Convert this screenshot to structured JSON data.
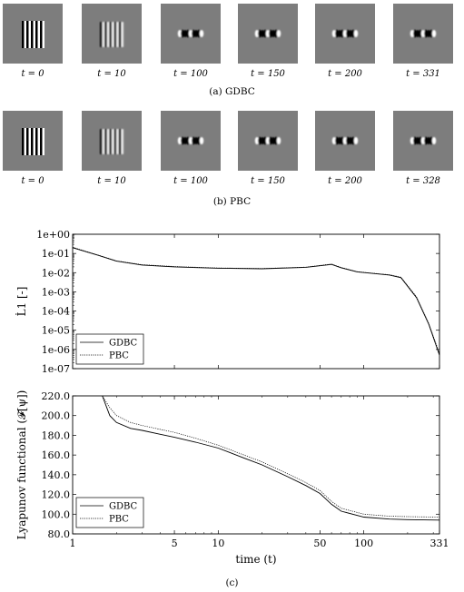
{
  "figure_rows": [
    {
      "caption": "(a) GDBC",
      "panels": [
        {
          "label": "t = 0",
          "pattern": "full-stripes"
        },
        {
          "label": "t = 10",
          "pattern": "blurred-stripes"
        },
        {
          "label": "t = 100",
          "pattern": "spots"
        },
        {
          "label": "t = 150",
          "pattern": "spots"
        },
        {
          "label": "t = 200",
          "pattern": "spots"
        },
        {
          "label": "t = 331",
          "pattern": "spots"
        }
      ]
    },
    {
      "caption": "(b) PBC",
      "panels": [
        {
          "label": "t = 0",
          "pattern": "full-stripes"
        },
        {
          "label": "t = 10",
          "pattern": "blurred-stripes"
        },
        {
          "label": "t = 100",
          "pattern": "spots"
        },
        {
          "label": "t = 150",
          "pattern": "spots"
        },
        {
          "label": "t = 200",
          "pattern": "spots"
        },
        {
          "label": "t = 328",
          "pattern": "spots"
        }
      ]
    }
  ],
  "bottom_caption": "(c)",
  "chart_data": [
    {
      "type": "line",
      "ylabel": "L̇1 [-]",
      "xscale": "log",
      "yscale": "log",
      "xlim": [
        1,
        331
      ],
      "ylim": [
        1e-07,
        1
      ],
      "yticks": [
        "1e+00",
        "1e-01",
        "1e-02",
        "1e-03",
        "1e-04",
        "1e-05",
        "1e-06",
        "1e-07"
      ],
      "legend_position": "bottom-left",
      "series": [
        {
          "name": "GDBC",
          "style": "solid",
          "x": [
            1,
            1.5,
            2,
            3,
            5,
            10,
            20,
            40,
            55,
            60,
            70,
            90,
            110,
            150,
            180,
            230,
            280,
            331
          ],
          "y": [
            0.2,
            0.08,
            0.04,
            0.025,
            0.02,
            0.017,
            0.016,
            0.019,
            0.025,
            0.027,
            0.018,
            0.011,
            0.0095,
            0.0075,
            0.0055,
            0.0005,
            2e-05,
            5e-07
          ]
        },
        {
          "name": "PBC",
          "style": "dotted",
          "x": [
            1,
            1.5,
            2,
            3,
            5,
            10,
            20,
            40,
            55,
            60,
            70,
            90,
            110,
            150,
            180,
            230,
            280,
            331
          ],
          "y": [
            0.21,
            0.082,
            0.041,
            0.026,
            0.021,
            0.0175,
            0.0165,
            0.0195,
            0.026,
            0.028,
            0.0185,
            0.0112,
            0.0097,
            0.0078,
            0.0058,
            0.00055,
            2.2e-05,
            6e-07
          ]
        }
      ]
    },
    {
      "type": "line",
      "xlabel": "time (t)",
      "ylabel": "Lyapunov functional (𝓕[ψ])",
      "xscale": "log",
      "xlim": [
        1,
        331
      ],
      "ylim": [
        80,
        220
      ],
      "xticks": [
        "1",
        "5",
        "10",
        "50",
        "100",
        "331"
      ],
      "yticks": [
        "80.0",
        "100.0",
        "120.0",
        "140.0",
        "160.0",
        "180.0",
        "200.0",
        "220.0"
      ],
      "legend_position": "bottom-left",
      "series": [
        {
          "name": "GDBC",
          "style": "solid",
          "x": [
            1.6,
            1.8,
            2,
            2.5,
            3,
            4,
            5,
            7,
            10,
            15,
            20,
            30,
            40,
            50,
            60,
            70,
            100,
            150,
            200,
            331
          ],
          "y": [
            220,
            200,
            193,
            187,
            185,
            181,
            178,
            173,
            167,
            157,
            150,
            138,
            129,
            121,
            110,
            103,
            97,
            95,
            94.5,
            94
          ]
        },
        {
          "name": "PBC",
          "style": "dotted",
          "x": [
            1.6,
            1.8,
            2,
            2.5,
            3,
            4,
            5,
            7,
            10,
            15,
            20,
            30,
            40,
            50,
            60,
            70,
            100,
            150,
            200,
            331
          ],
          "y": [
            220,
            208,
            200,
            193,
            190,
            186,
            183,
            177,
            170,
            160,
            153,
            141,
            132,
            124,
            113,
            106,
            100,
            98,
            97.5,
            97
          ]
        }
      ]
    }
  ]
}
